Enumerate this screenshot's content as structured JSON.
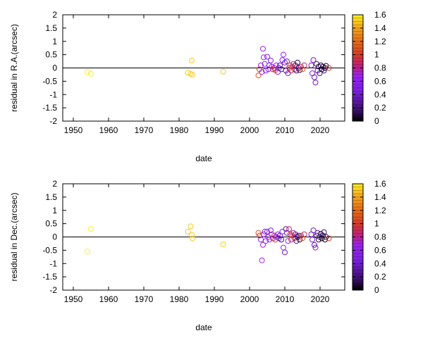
{
  "chart_data": [
    {
      "type": "scatter",
      "xlabel": "date",
      "ylabel": "residual in R.A.(arcsec)",
      "xlim": [
        1947,
        2027
      ],
      "ylim": [
        -2,
        2
      ],
      "xticks": [
        "1950",
        "1960",
        "1970",
        "1980",
        "1990",
        "2000",
        "2010",
        "2020"
      ],
      "yticks": [
        "2",
        "1.5",
        "1",
        "0.5",
        "0",
        "-0.5",
        "-1",
        "-1.5",
        "-2"
      ],
      "zero_line": true,
      "colorbar": {
        "range": [
          0,
          1.6
        ],
        "ticks": [
          "1.6",
          "1.4",
          "1.2",
          "1",
          "0.8",
          "0.6",
          "0.4",
          "0.2",
          "0"
        ]
      },
      "points": [
        [
          1954.0,
          -0.15,
          1.6
        ],
        [
          1955.0,
          -0.22,
          1.6
        ],
        [
          1982.5,
          -0.18,
          1.5
        ],
        [
          1983.3,
          -0.22,
          1.5
        ],
        [
          1983.6,
          0.28,
          1.5
        ],
        [
          1983.8,
          -0.26,
          1.5
        ],
        [
          1992.5,
          -0.14,
          1.5
        ],
        [
          2002.5,
          -0.28,
          1.1
        ],
        [
          2002.8,
          -0.05,
          1.0
        ],
        [
          2003.2,
          0.1,
          0.7
        ],
        [
          2003.5,
          -0.15,
          0.7
        ],
        [
          2003.8,
          0.72,
          0.7
        ],
        [
          2004.0,
          0.4,
          0.7
        ],
        [
          2004.3,
          0.15,
          0.6
        ],
        [
          2004.6,
          -0.1,
          0.6
        ],
        [
          2005.0,
          0.42,
          0.5
        ],
        [
          2005.3,
          -0.05,
          0.6
        ],
        [
          2005.6,
          0.1,
          0.6
        ],
        [
          2006.0,
          0.28,
          0.5
        ],
        [
          2006.3,
          0.05,
          0.7
        ],
        [
          2006.6,
          -0.05,
          0.8
        ],
        [
          2007.0,
          0.0,
          0.9
        ],
        [
          2007.3,
          -0.08,
          1.0
        ],
        [
          2007.6,
          0.1,
          0.6
        ],
        [
          2008.0,
          -0.15,
          0.5
        ],
        [
          2008.3,
          0.0,
          0.4
        ],
        [
          2008.6,
          0.1,
          0.3
        ],
        [
          2009.0,
          -0.05,
          0.2
        ],
        [
          2009.3,
          0.3,
          0.5
        ],
        [
          2009.6,
          0.5,
          0.6
        ],
        [
          2010.0,
          0.2,
          0.4
        ],
        [
          2010.3,
          -0.1,
          0.3
        ],
        [
          2010.6,
          0.25,
          0.4
        ],
        [
          2010.9,
          -0.2,
          0.5
        ],
        [
          2011.2,
          0.0,
          0.9
        ],
        [
          2011.5,
          0.1,
          1.0
        ],
        [
          2011.8,
          -0.1,
          0.9
        ],
        [
          2012.1,
          0.05,
          1.0
        ],
        [
          2012.4,
          0.15,
          0.8
        ],
        [
          2012.7,
          -0.05,
          0.9
        ],
        [
          2013.0,
          0.1,
          0.3
        ],
        [
          2013.3,
          -0.1,
          0.2
        ],
        [
          2013.6,
          0.2,
          0.1
        ],
        [
          2013.9,
          0.0,
          0.2
        ],
        [
          2014.2,
          -0.08,
          0.1
        ],
        [
          2014.6,
          0.05,
          0.9
        ],
        [
          2015.0,
          -0.05,
          1.1
        ],
        [
          2015.5,
          0.1,
          0.9
        ],
        [
          2017.5,
          0.1,
          0.4
        ],
        [
          2017.8,
          -0.2,
          0.5
        ],
        [
          2018.1,
          0.3,
          0.4
        ],
        [
          2018.4,
          -0.35,
          0.3
        ],
        [
          2018.7,
          -0.55,
          0.4
        ],
        [
          2019.0,
          0.15,
          0.2
        ],
        [
          2019.3,
          -0.1,
          0.3
        ],
        [
          2019.6,
          0.05,
          0.1
        ],
        [
          2019.9,
          -0.2,
          0.2
        ],
        [
          2020.2,
          0.1,
          0.1
        ],
        [
          2020.5,
          -0.05,
          0.0
        ],
        [
          2020.8,
          0.05,
          0.1
        ],
        [
          2021.1,
          -0.1,
          0.2
        ],
        [
          2021.4,
          0.0,
          0.05
        ],
        [
          2021.7,
          0.08,
          0.1
        ],
        [
          2022.5,
          0.0,
          1.0
        ]
      ]
    },
    {
      "type": "scatter",
      "xlabel": "date",
      "ylabel": "residual in Dec.(arcsec)",
      "xlim": [
        1947,
        2027
      ],
      "ylim": [
        -2,
        2
      ],
      "xticks": [
        "1950",
        "1960",
        "1970",
        "1980",
        "1990",
        "2000",
        "2010",
        "2020"
      ],
      "yticks": [
        "2",
        "1.5",
        "1",
        "0.5",
        "0",
        "-0.5",
        "-1",
        "-1.5",
        "-2"
      ],
      "zero_line": true,
      "colorbar": {
        "range": [
          0,
          1.6
        ],
        "ticks": [
          "1.6",
          "1.4",
          "1.2",
          "1",
          "0.8",
          "0.6",
          "0.4",
          "0.2",
          "0"
        ]
      },
      "points": [
        [
          1954.0,
          -0.55,
          1.6
        ],
        [
          1955.0,
          0.3,
          1.6
        ],
        [
          1982.5,
          0.2,
          1.5
        ],
        [
          1983.3,
          0.4,
          1.5
        ],
        [
          1983.6,
          0.08,
          1.5
        ],
        [
          1983.8,
          -0.05,
          1.5
        ],
        [
          1992.5,
          -0.28,
          1.5
        ],
        [
          2002.5,
          0.15,
          1.1
        ],
        [
          2002.8,
          0.05,
          1.0
        ],
        [
          2003.2,
          -0.1,
          0.7
        ],
        [
          2003.5,
          -0.88,
          0.7
        ],
        [
          2003.8,
          -0.3,
          0.7
        ],
        [
          2004.0,
          0.1,
          0.7
        ],
        [
          2004.3,
          0.2,
          0.6
        ],
        [
          2004.6,
          -0.15,
          0.6
        ],
        [
          2005.0,
          0.2,
          0.5
        ],
        [
          2005.3,
          0.0,
          0.6
        ],
        [
          2005.6,
          -0.1,
          0.6
        ],
        [
          2006.0,
          0.25,
          0.5
        ],
        [
          2006.3,
          0.1,
          0.7
        ],
        [
          2006.6,
          -0.05,
          0.8
        ],
        [
          2007.0,
          0.05,
          0.9
        ],
        [
          2007.3,
          -0.1,
          1.0
        ],
        [
          2007.6,
          0.0,
          0.6
        ],
        [
          2008.0,
          0.1,
          0.5
        ],
        [
          2008.3,
          -0.05,
          0.4
        ],
        [
          2008.6,
          0.05,
          0.3
        ],
        [
          2009.0,
          -0.1,
          0.2
        ],
        [
          2009.3,
          0.2,
          0.5
        ],
        [
          2009.6,
          -0.4,
          0.6
        ],
        [
          2010.0,
          -0.58,
          0.4
        ],
        [
          2010.3,
          0.3,
          0.3
        ],
        [
          2010.6,
          0.15,
          0.4
        ],
        [
          2010.9,
          -0.15,
          0.5
        ],
        [
          2011.2,
          0.3,
          0.9
        ],
        [
          2011.5,
          0.1,
          1.0
        ],
        [
          2011.8,
          -0.1,
          0.9
        ],
        [
          2012.1,
          0.05,
          1.0
        ],
        [
          2012.4,
          0.15,
          0.8
        ],
        [
          2012.7,
          -0.05,
          0.9
        ],
        [
          2013.0,
          0.1,
          0.3
        ],
        [
          2013.3,
          -0.15,
          0.2
        ],
        [
          2013.6,
          0.0,
          0.1
        ],
        [
          2013.9,
          0.05,
          0.2
        ],
        [
          2014.2,
          -0.1,
          0.1
        ],
        [
          2014.6,
          0.05,
          0.9
        ],
        [
          2015.0,
          -0.05,
          1.1
        ],
        [
          2015.5,
          0.1,
          0.9
        ],
        [
          2017.5,
          0.1,
          0.4
        ],
        [
          2017.8,
          -0.1,
          0.5
        ],
        [
          2018.1,
          0.25,
          0.4
        ],
        [
          2018.4,
          -0.3,
          0.3
        ],
        [
          2018.7,
          -0.4,
          0.4
        ],
        [
          2019.0,
          0.05,
          0.2
        ],
        [
          2019.3,
          0.15,
          0.3
        ],
        [
          2019.6,
          -0.1,
          0.1
        ],
        [
          2019.9,
          0.0,
          0.2
        ],
        [
          2020.2,
          0.12,
          0.1
        ],
        [
          2020.5,
          -0.05,
          0.0
        ],
        [
          2020.8,
          0.05,
          0.1
        ],
        [
          2021.1,
          0.18,
          0.2
        ],
        [
          2021.4,
          -0.1,
          0.05
        ],
        [
          2021.7,
          0.0,
          0.1
        ],
        [
          2022.5,
          -0.05,
          1.0
        ]
      ]
    }
  ]
}
